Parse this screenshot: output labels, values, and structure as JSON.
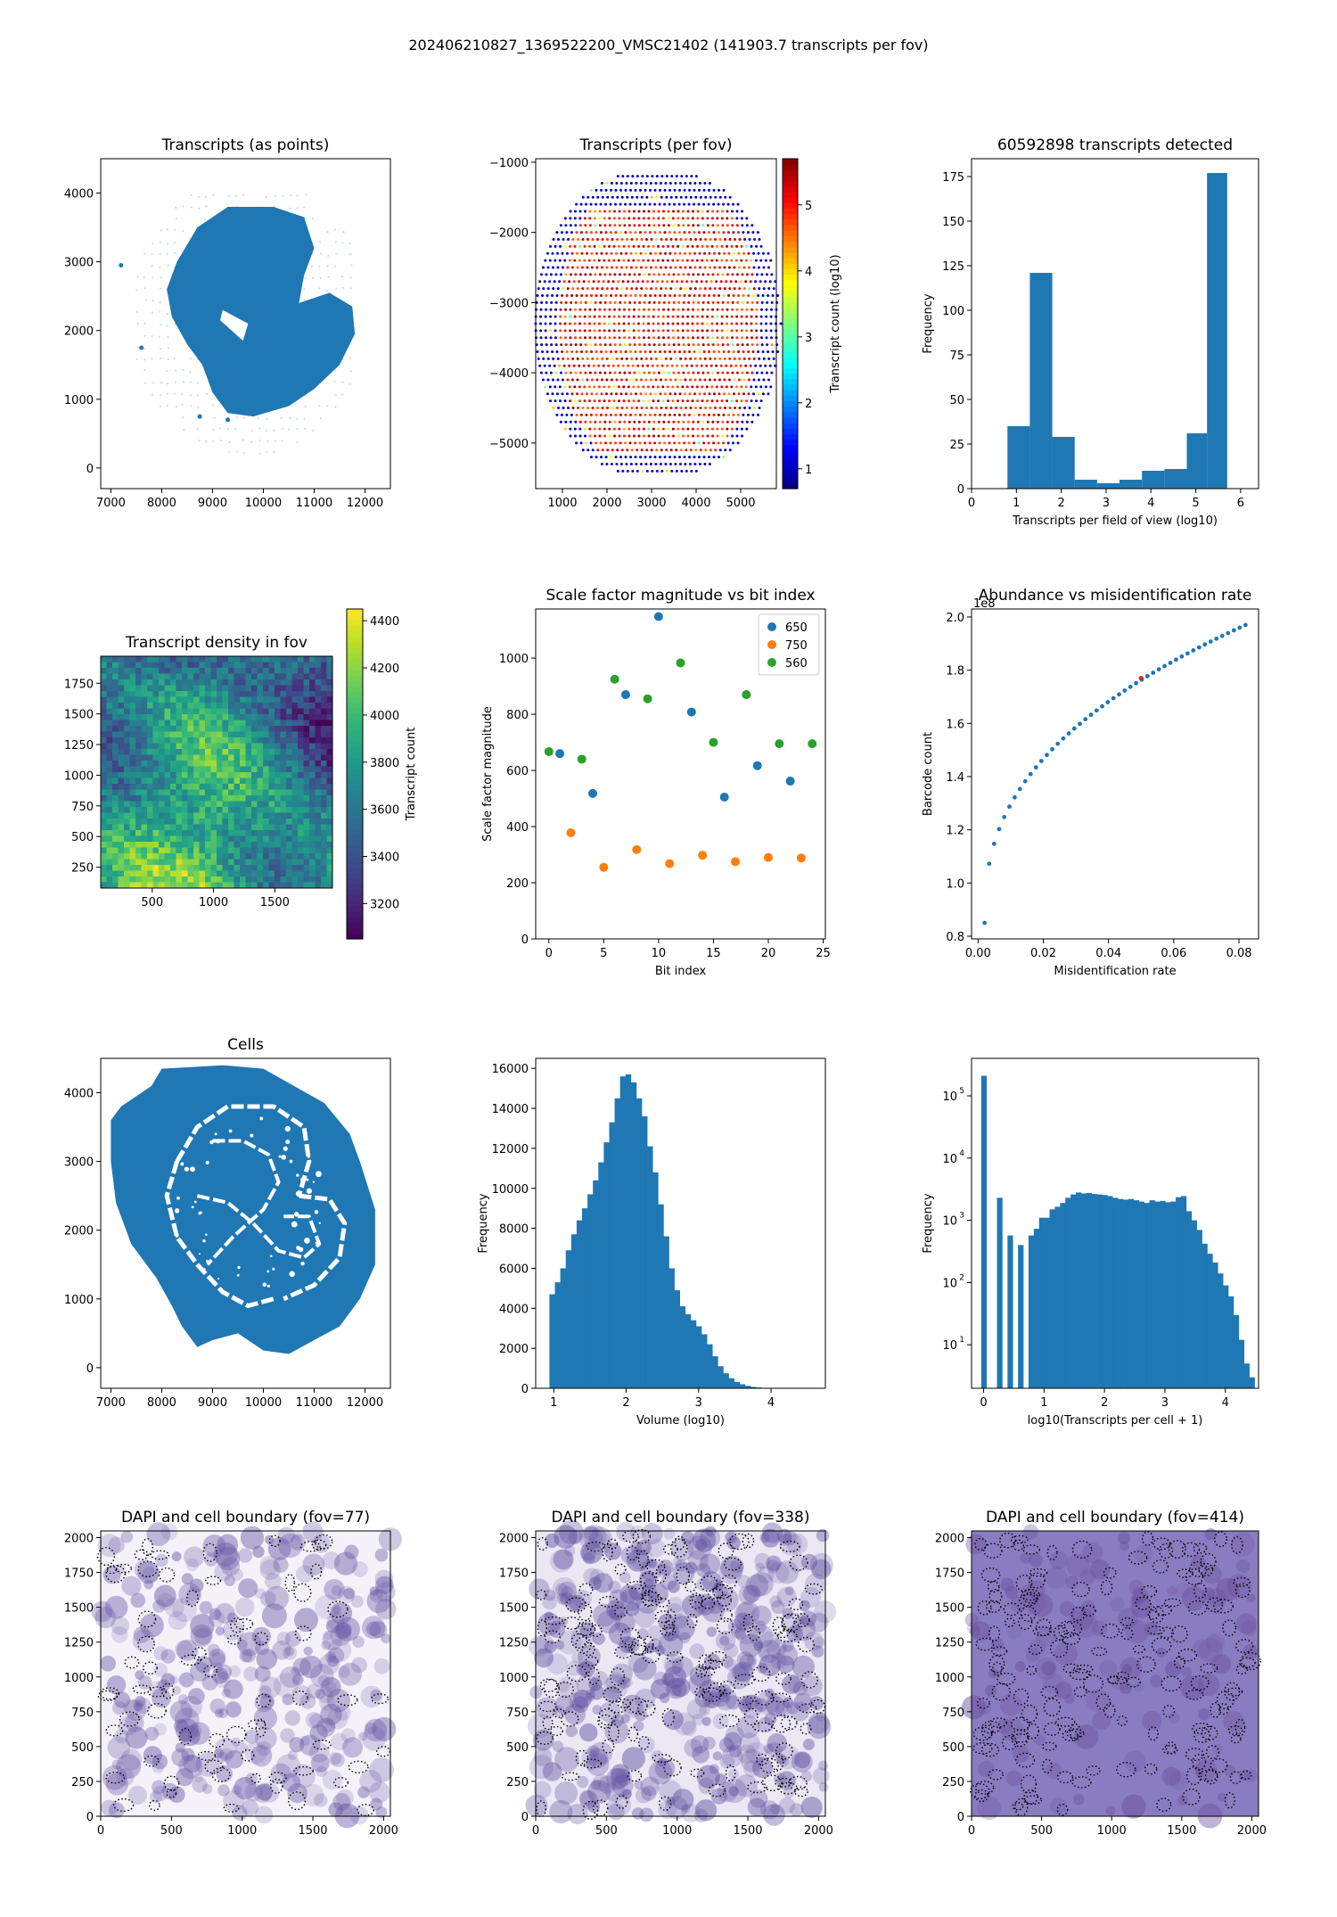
{
  "suptitle": "202406210827_1369522200_VMSC21402 (141903.7 transcripts per fov)",
  "colors": {
    "tab_blue": "#1f77b4",
    "tab_orange": "#ff7f0e",
    "tab_green": "#2ca02c",
    "tab_red": "#d62728"
  },
  "chart_data": [
    {
      "id": "transcripts-points",
      "type": "scatter",
      "title": "Transcripts (as points)",
      "xlabel": "",
      "ylabel": "",
      "xlim": [
        6800,
        12500
      ],
      "ylim": [
        -300,
        4500
      ],
      "xticks": [
        7000,
        8000,
        9000,
        10000,
        11000,
        12000
      ],
      "yticks": [
        0,
        1000,
        2000,
        3000,
        4000
      ],
      "point_color": "#1f77b4",
      "note_shape": "dense tissue region rendered as filled blob; sparse grid points around it"
    },
    {
      "id": "transcripts-per-fov",
      "type": "scatter",
      "title": "Transcripts (per fov)",
      "xlim": [
        400,
        5800
      ],
      "ylim": [
        -5650,
        -950
      ],
      "xticks": [
        1000,
        2000,
        3000,
        4000,
        5000
      ],
      "yticks": [
        -1000,
        -2000,
        -3000,
        -4000,
        -5000
      ],
      "colorbar": {
        "label": "Transcript count (log10)",
        "ticks": [
          1,
          2,
          3,
          4,
          5
        ],
        "range": [
          0.7,
          5.7
        ],
        "colormap": "jet"
      }
    },
    {
      "id": "transcripts-histogram",
      "type": "bar",
      "title": "60592898 transcripts detected",
      "xlabel": "Transcripts per field of view (log10)",
      "ylabel": "Frequency",
      "xlim": [
        0,
        6.4
      ],
      "ylim": [
        0,
        185
      ],
      "xticks": [
        0,
        1,
        2,
        3,
        4,
        5,
        6
      ],
      "yticks": [
        0,
        25,
        50,
        75,
        100,
        125,
        150,
        175
      ],
      "bin_edges": [
        0.8,
        1.3,
        1.8,
        2.3,
        2.8,
        3.3,
        3.8,
        4.3,
        4.8,
        5.25,
        5.7
      ],
      "values": [
        35,
        121,
        29,
        5,
        3,
        5,
        10,
        11,
        31,
        177
      ]
    },
    {
      "id": "transcript-density",
      "type": "heatmap",
      "title": "Transcript density in fov",
      "xlim": [
        80,
        1970
      ],
      "ylim": [
        80,
        1970
      ],
      "xticks": [
        500,
        1000,
        1500
      ],
      "yticks": [
        250,
        500,
        750,
        1000,
        1250,
        1500,
        1750
      ],
      "colorbar": {
        "label": "Transcript count",
        "ticks": [
          3200,
          3400,
          3600,
          3800,
          4000,
          4200,
          4400
        ],
        "range": [
          3050,
          4450
        ],
        "colormap": "viridis"
      }
    },
    {
      "id": "scale-factor",
      "type": "scatter",
      "title": "Scale factor magnitude vs bit index",
      "xlabel": "Bit index",
      "ylabel": "Scale factor magnitude",
      "xlim": [
        -1.2,
        25.2
      ],
      "ylim": [
        0,
        1175
      ],
      "xticks": [
        0,
        5,
        10,
        15,
        20,
        25
      ],
      "yticks": [
        0,
        200,
        400,
        600,
        800,
        1000
      ],
      "legend_position": "top-right",
      "series": [
        {
          "name": "650",
          "color": "#1f77b4",
          "points": [
            [
              1,
              660
            ],
            [
              4,
              518
            ],
            [
              7,
              870
            ],
            [
              10,
              1148
            ],
            [
              13,
              808
            ],
            [
              16,
              505
            ],
            [
              19,
              617
            ],
            [
              22,
              562
            ]
          ]
        },
        {
          "name": "750",
          "color": "#ff7f0e",
          "points": [
            [
              2,
              378
            ],
            [
              5,
              255
            ],
            [
              8,
              318
            ],
            [
              11,
              268
            ],
            [
              14,
              298
            ],
            [
              17,
              275
            ],
            [
              20,
              290
            ],
            [
              23,
              288
            ]
          ]
        },
        {
          "name": "560",
          "color": "#2ca02c",
          "points": [
            [
              0,
              667
            ],
            [
              3,
              640
            ],
            [
              6,
              925
            ],
            [
              9,
              855
            ],
            [
              12,
              983
            ],
            [
              15,
              700
            ],
            [
              18,
              870
            ],
            [
              21,
              695
            ],
            [
              24,
              695
            ]
          ]
        }
      ]
    },
    {
      "id": "abundance",
      "type": "scatter",
      "title": "Abundance vs misidentification rate",
      "xlabel": "Misidentification rate",
      "ylabel": "Barcode count",
      "scale_label": "1e8",
      "xlim": [
        -0.002,
        0.086
      ],
      "ylim": [
        0.79,
        2.03
      ],
      "xticks": [
        0.0,
        0.02,
        0.04,
        0.06,
        0.08
      ],
      "xtick_labels": [
        "0.00",
        "0.02",
        "0.04",
        "0.06",
        "0.08"
      ],
      "yticks": [
        0.8,
        1.0,
        1.2,
        1.4,
        1.6,
        1.8,
        2.0
      ],
      "ytick_labels": [
        "0.8",
        "1.0",
        "1.2",
        "1.4",
        "1.6",
        "1.8",
        "2.0"
      ],
      "x_range": [
        0.002,
        0.082
      ],
      "y_range": [
        0.85,
        1.97
      ],
      "highlight": [
        0.05,
        1.77
      ]
    },
    {
      "id": "cells",
      "type": "scatter",
      "title": "Cells",
      "xlim": [
        6800,
        12500
      ],
      "ylim": [
        -300,
        4500
      ],
      "xticks": [
        7000,
        8000,
        9000,
        10000,
        11000,
        12000
      ],
      "yticks": [
        0,
        1000,
        2000,
        3000,
        4000
      ]
    },
    {
      "id": "volume-histogram",
      "type": "bar",
      "xlabel": "Volume (log10)",
      "ylabel": "Frequency",
      "xlim": [
        0.75,
        4.75
      ],
      "ylim": [
        0,
        16500
      ],
      "xticks": [
        1,
        2,
        3,
        4
      ],
      "yticks": [
        0,
        2000,
        4000,
        6000,
        8000,
        10000,
        12000,
        14000,
        16000
      ],
      "bin_start": 0.94,
      "bin_width": 0.075,
      "values": [
        4700,
        5300,
        6000,
        6900,
        7700,
        8400,
        9000,
        9700,
        10400,
        11300,
        12300,
        13300,
        14500,
        15600,
        15700,
        15300,
        14500,
        13600,
        12100,
        10800,
        9200,
        7600,
        6000,
        4900,
        4100,
        3700,
        3400,
        3100,
        2700,
        2200,
        1600,
        1100,
        750,
        500,
        320,
        200,
        120,
        70,
        40,
        20,
        10,
        5
      ]
    },
    {
      "id": "transcripts-per-cell",
      "type": "bar",
      "xlabel": "log10(Transcripts per cell + 1)",
      "ylabel": "Frequency",
      "log_y": true,
      "xlim": [
        -0.2,
        4.55
      ],
      "ylim": [
        2,
        400000
      ],
      "xticks": [
        0,
        1,
        2,
        3,
        4
      ],
      "ytick_labels": [
        "10",
        "10",
        "10",
        "10",
        "10"
      ],
      "ytick_exponents": [
        "1",
        "2",
        "3",
        "4",
        "5"
      ],
      "ytick_values": [
        10,
        100,
        1000,
        10000,
        100000
      ],
      "bin_start": -0.04,
      "bin_width": 0.087,
      "values": [
        210000,
        2,
        2,
        2300,
        2,
        570,
        2,
        400,
        2,
        570,
        730,
        1100,
        1100,
        1500,
        1650,
        1900,
        2300,
        2600,
        2800,
        2700,
        2750,
        2650,
        2600,
        2550,
        2450,
        2300,
        2200,
        2150,
        2200,
        2100,
        2000,
        1900,
        2100,
        2000,
        2050,
        1950,
        2000,
        2350,
        2450,
        1400,
        1000,
        700,
        420,
        290,
        210,
        140,
        90,
        60,
        30,
        12,
        5,
        3
      ]
    },
    {
      "id": "dapi-77",
      "type": "heatmap",
      "title": "DAPI and cell boundary (fov=77)",
      "xlim": [
        0,
        2048
      ],
      "ylim": [
        0,
        2048
      ],
      "xticks": [
        0,
        500,
        1000,
        1500,
        2000
      ],
      "yticks": [
        0,
        250,
        500,
        750,
        1000,
        1250,
        1500,
        1750,
        2000
      ]
    },
    {
      "id": "dapi-338",
      "type": "heatmap",
      "title": "DAPI and cell boundary (fov=338)",
      "xlim": [
        0,
        2048
      ],
      "ylim": [
        0,
        2048
      ],
      "xticks": [
        0,
        500,
        1000,
        1500,
        2000
      ],
      "yticks": [
        0,
        250,
        500,
        750,
        1000,
        1250,
        1500,
        1750,
        2000
      ]
    },
    {
      "id": "dapi-414",
      "type": "heatmap",
      "title": "DAPI and cell boundary (fov=414)",
      "xlim": [
        0,
        2048
      ],
      "ylim": [
        0,
        2048
      ],
      "xticks": [
        0,
        500,
        1000,
        1500,
        2000
      ],
      "yticks": [
        0,
        250,
        500,
        750,
        1000,
        1250,
        1500,
        1750,
        2000
      ]
    }
  ]
}
